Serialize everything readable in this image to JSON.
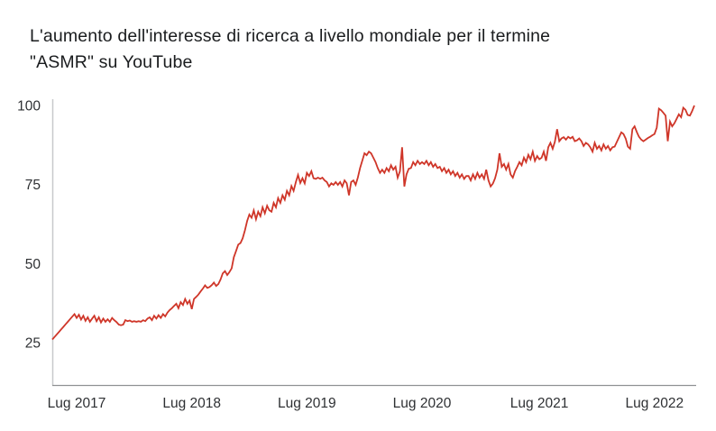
{
  "page": {
    "background": "#ffffff"
  },
  "title_lines": [
    "L'aumento dell'interesse di ricerca a livello mondiale per il termine",
    "\"ASMR\" su YouTube"
  ],
  "chart_data": {
    "type": "line",
    "title": "L'aumento dell'interesse di ricerca a livello mondiale per il termine \"ASMR\" su YouTube",
    "x_tick_labels": [
      "Lug 2017",
      "Lug 2018",
      "Lug 2019",
      "Lug 2020",
      "Lug 2021",
      "Lug 2022"
    ],
    "x_tick_weeks": [
      11,
      63,
      115,
      167,
      220,
      272
    ],
    "x_weeks_total": 290,
    "y_tick_values": [
      25,
      50,
      75,
      100
    ],
    "ylim": [
      11.5,
      102
    ],
    "grid": false,
    "legend": false,
    "colors": {
      "line": "#cf3629",
      "axis_x": "#8f9193",
      "axis_y": "#c7c9cb",
      "tick_labels": "#2e3033",
      "title": "#1a1c1e"
    },
    "values": [
      26,
      26.8,
      27.6,
      28.4,
      29.2,
      30,
      30.8,
      31.6,
      32.4,
      33.2,
      34,
      32.8,
      33.8,
      32.3,
      33.5,
      31.9,
      33,
      31.6,
      32.6,
      33.5,
      31.8,
      33,
      31.4,
      32.6,
      31.6,
      32.4,
      31.6,
      32.8,
      32.1,
      31.5,
      30.7,
      30.5,
      30.7,
      32.1,
      31.8,
      32,
      31.6,
      31.8,
      31.6,
      31.8,
      31.6,
      32.1,
      31.8,
      32.6,
      33,
      32.1,
      33.5,
      32.6,
      33.7,
      32.8,
      34,
      33.3,
      34.5,
      35.3,
      35.9,
      36.6,
      37.3,
      35.9,
      37.8,
      36.9,
      38.8,
      37.3,
      38.3,
      35.6,
      38.8,
      39.5,
      40.2,
      41.2,
      42.1,
      43.1,
      42.3,
      42.6,
      43.2,
      44,
      42.9,
      43.5,
      45,
      46.9,
      47.6,
      46.4,
      47.3,
      48.5,
      52,
      54,
      56,
      56.5,
      58,
      60.5,
      63.5,
      65.5,
      64.5,
      66.8,
      64,
      66.4,
      65,
      67.8,
      65.9,
      68.3,
      66.9,
      66.4,
      69.2,
      67.8,
      70.7,
      69.2,
      71.6,
      70.2,
      73,
      71.6,
      74.5,
      73,
      75.8,
      78,
      75.5,
      77,
      75.4,
      78.7,
      77.7,
      79.2,
      77,
      76.8,
      77.2,
      76.8,
      77.2,
      76.3,
      75.8,
      74.4,
      75.4,
      74.9,
      75.8,
      74.9,
      75.8,
      74.4,
      76.3,
      75.4,
      71.6,
      75.8,
      76.3,
      74.9,
      77.2,
      80.2,
      82.5,
      84.9,
      84.3,
      85.4,
      84.9,
      83.5,
      82.1,
      80.2,
      78.7,
      79.7,
      78.7,
      80.2,
      79.2,
      81.1,
      79.7,
      80.6,
      77.2,
      79.2,
      86.8,
      74.4,
      78.2,
      80,
      80.2,
      82.1,
      81.1,
      82.5,
      81.5,
      82.1,
      81.5,
      82.5,
      81.1,
      82.1,
      80.6,
      81.5,
      80.2,
      80.6,
      79.2,
      80.2,
      78.7,
      79.7,
      78.2,
      79.2,
      77.7,
      78.7,
      77.2,
      78.2,
      76.8,
      77.7,
      77.7,
      76.3,
      78.2,
      76.8,
      78.7,
      77.2,
      78.2,
      76.8,
      79.7,
      76.3,
      74.4,
      75.3,
      77,
      79.7,
      84.9,
      80.6,
      81.5,
      79.7,
      81.5,
      78.2,
      77.2,
      79.2,
      80.6,
      82.1,
      81.1,
      83.5,
      82.1,
      84.4,
      83,
      85.4,
      82.5,
      84,
      83,
      83.5,
      85.4,
      82.5,
      86.8,
      88.2,
      86.3,
      88.5,
      92.5,
      88.7,
      89.6,
      90,
      89.2,
      90.1,
      89.6,
      90.1,
      88.7,
      89,
      89.6,
      88.7,
      87.2,
      88.2,
      87.7,
      86.8,
      85.4,
      88.2,
      86.3,
      87.2,
      85.8,
      87.7,
      86.3,
      87.2,
      85.8,
      86.8,
      87,
      88.5,
      90,
      91.5,
      91,
      89.5,
      87,
      86.3,
      92.5,
      93.4,
      91.6,
      90.1,
      89.2,
      88.7,
      89.2,
      89.7,
      90.1,
      90.6,
      91,
      93,
      99,
      98.5,
      97.7,
      96.8,
      88.7,
      94.9,
      93.4,
      94.4,
      95.8,
      97.2,
      96.3,
      99.3,
      98.6,
      97,
      96.8,
      98.2,
      100
    ]
  }
}
